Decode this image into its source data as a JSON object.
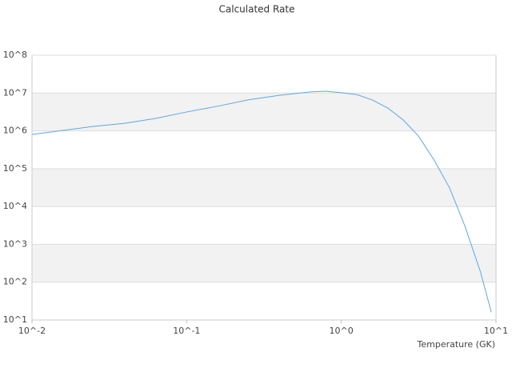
{
  "chart_data": {
    "type": "line",
    "title": "Calculated Rate",
    "x_label": "Temperature (GK)",
    "xscale": "log",
    "yscale": "log",
    "xlim": [
      0.01,
      10
    ],
    "ylim": [
      10,
      100000000
    ],
    "xticks": [
      {
        "value": 0.01,
        "label": "10^-2"
      },
      {
        "value": 0.1,
        "label": "10^-1"
      },
      {
        "value": 1,
        "label": "10^0"
      },
      {
        "value": 10,
        "label": "10^1"
      }
    ],
    "yticks": [
      {
        "value": 10,
        "label": "10^1"
      },
      {
        "value": 100,
        "label": "10^2"
      },
      {
        "value": 1000,
        "label": "10^3"
      },
      {
        "value": 10000,
        "label": "10^4"
      },
      {
        "value": 100000,
        "label": "10^5"
      },
      {
        "value": 1000000,
        "label": "10^6"
      },
      {
        "value": 10000000,
        "label": "10^7"
      },
      {
        "value": 100000000,
        "label": "10^8"
      }
    ],
    "grid": true,
    "band_color": "#f2f2f2",
    "x": [
      0.01,
      0.0158,
      0.0251,
      0.0398,
      0.0631,
      0.1,
      0.158,
      0.251,
      0.398,
      0.631,
      0.794,
      1,
      1.26,
      1.58,
      2,
      2.51,
      3.16,
      3.98,
      5.01,
      6.31,
      7.94,
      9.33
    ],
    "series": [
      {
        "color": "#5ba7e8",
        "values": [
          805000,
          1020000,
          1320000,
          1580000,
          2140000,
          3160000,
          4470000,
          6610000,
          8710000,
          10700000,
          11200000,
          10200000,
          9100000,
          6600000,
          4000000,
          1950000,
          720000,
          170000,
          31000,
          2950,
          186,
          16
        ]
      }
    ]
  }
}
